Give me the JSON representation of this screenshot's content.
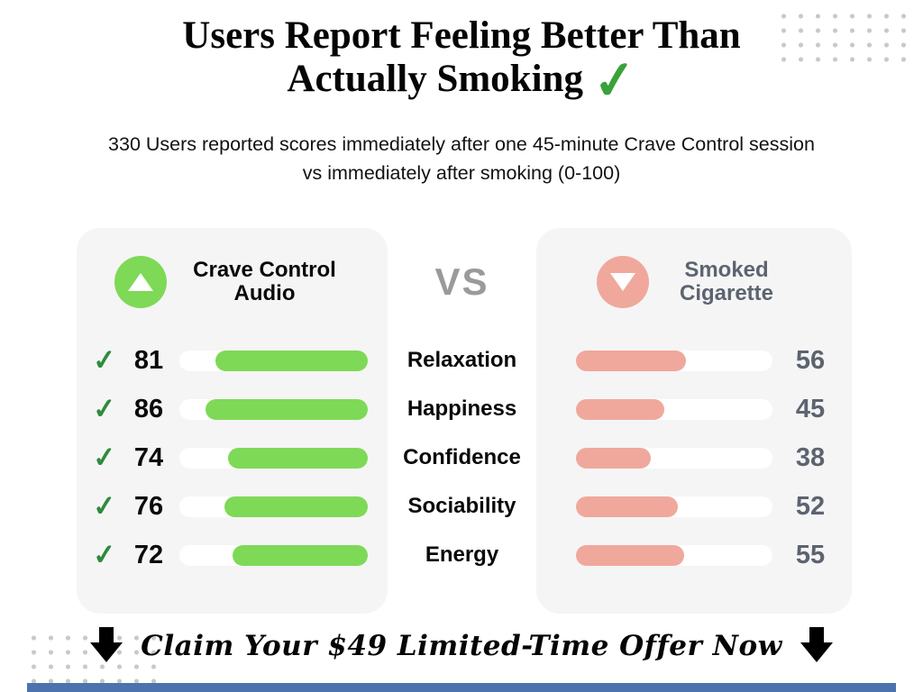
{
  "title": {
    "line1": "Users Report Feeling Better Than",
    "line2": "Actually Smoking",
    "check_icon": "✓"
  },
  "subtitle": "330 Users reported scores immediately after one 45-minute Crave Control session vs immediately after smoking (0-100)",
  "vs_label": "VS",
  "panels": {
    "left": {
      "title": "Crave Control Audio"
    },
    "right": {
      "title": "Smoked Cigarette"
    }
  },
  "check_glyph": "✓",
  "cta": {
    "label": "Claim Your $49 Limited-Time Offer Now"
  },
  "colors": {
    "green": "#7ED957",
    "pink": "#F0A89C",
    "check-green": "#2E8B3E",
    "gray-text": "#5C6470",
    "bottom-bar": "#4C73AE",
    "panel-bg": "#F5F5F5"
  },
  "chart_data": {
    "type": "bar",
    "categories": [
      "Relaxation",
      "Happiness",
      "Confidence",
      "Sociability",
      "Energy"
    ],
    "series": [
      {
        "name": "Crave Control Audio",
        "values": [
          81,
          86,
          74,
          76,
          72
        ]
      },
      {
        "name": "Smoked Cigarette",
        "values": [
          56,
          45,
          38,
          52,
          55
        ]
      }
    ],
    "value_range": [
      0,
      100
    ],
    "title": "Users Report Feeling Better Than Actually Smoking",
    "legend_position": "panel-headers",
    "grid": false
  }
}
